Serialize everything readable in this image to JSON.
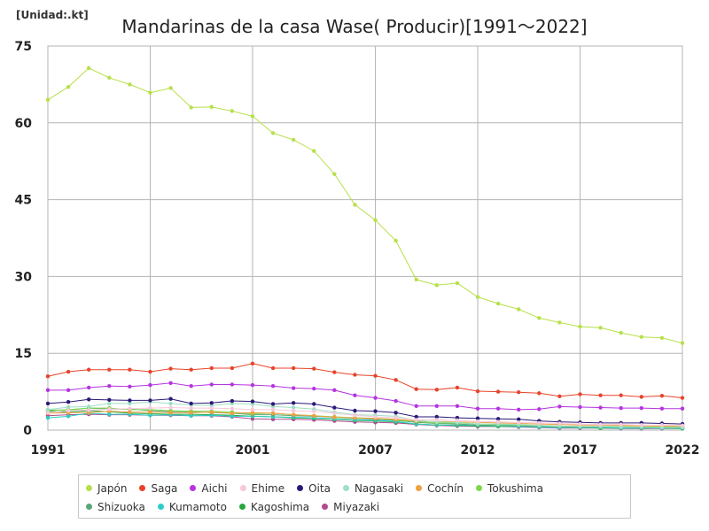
{
  "header": {
    "unit": "[Unidad:.kt]",
    "title": "Mandarinas de la casa Wase( Producir)[1991～2022]"
  },
  "chart_data": {
    "type": "line",
    "title": "Mandarinas de la casa Wase( Producir)[1991～2022]",
    "unit": "[Unidad:.kt]",
    "xlabel": "",
    "ylabel": "",
    "ylim": [
      0,
      75
    ],
    "xlim": [
      1991,
      2022
    ],
    "yticks": [
      0,
      15,
      30,
      45,
      60,
      75
    ],
    "xticks": [
      1991,
      1996,
      2001,
      2007,
      2012,
      2017,
      2022
    ],
    "grid": true,
    "legend_position": "bottom",
    "x": [
      1991,
      1992,
      1993,
      1994,
      1995,
      1996,
      1997,
      1998,
      1999,
      2000,
      2001,
      2002,
      2003,
      2004,
      2005,
      2006,
      2007,
      2008,
      2009,
      2010,
      2011,
      2012,
      2013,
      2014,
      2015,
      2016,
      2017,
      2018,
      2019,
      2020,
      2021,
      2022
    ],
    "series": [
      {
        "name": "Japón",
        "color": "#b6e04a",
        "values": [
          64.5,
          67,
          70.7,
          68.8,
          67.5,
          65.9,
          66.8,
          63,
          63.1,
          62.3,
          61.3,
          58,
          56.7,
          54.5,
          50,
          44,
          41,
          37,
          29.4,
          28.3,
          28.7,
          26,
          24.7,
          23.6,
          21.9,
          21,
          20.2,
          20,
          19,
          18.2,
          18,
          17
        ]
      },
      {
        "name": "Saga",
        "color": "#e8432a",
        "values": [
          10.5,
          11.4,
          11.8,
          11.8,
          11.8,
          11.4,
          12,
          11.8,
          12.1,
          12.1,
          13,
          12.1,
          12.1,
          12,
          11.3,
          10.8,
          10.6,
          9.8,
          8,
          7.9,
          8.3,
          7.6,
          7.5,
          7.4,
          7.2,
          6.6,
          7,
          6.8,
          6.8,
          6.5,
          6.7,
          6.3
        ]
      },
      {
        "name": "Aichi",
        "color": "#b534e0",
        "values": [
          7.8,
          7.8,
          8.3,
          8.6,
          8.5,
          8.8,
          9.2,
          8.6,
          8.9,
          8.9,
          8.8,
          8.6,
          8.2,
          8.1,
          7.8,
          6.8,
          6.3,
          5.7,
          4.7,
          4.7,
          4.7,
          4.2,
          4.2,
          4,
          4.1,
          4.6,
          4.5,
          4.4,
          4.3,
          4.3,
          4.2,
          4.2
        ]
      },
      {
        "name": "Ehime",
        "color": "#f6c8dc",
        "values": [
          3.4,
          3.8,
          3.9,
          4.1,
          4.2,
          4.3,
          4.4,
          4.3,
          4.3,
          4.2,
          4,
          4,
          3.8,
          3.7,
          3.3,
          2.9,
          2.6,
          2.4,
          2,
          2,
          1.9,
          1.7,
          1.6,
          1.5,
          1.4,
          1.3,
          1.2,
          1.1,
          1.1,
          1,
          1,
          0.9
        ]
      },
      {
        "name": "Oita",
        "color": "#2a1a78",
        "values": [
          5.2,
          5.5,
          6,
          5.9,
          5.8,
          5.8,
          6.1,
          5.2,
          5.3,
          5.7,
          5.6,
          5.1,
          5.3,
          5.1,
          4.4,
          3.8,
          3.7,
          3.4,
          2.6,
          2.6,
          2.4,
          2.3,
          2.2,
          2.1,
          1.8,
          1.6,
          1.5,
          1.4,
          1.4,
          1.4,
          1.3,
          1.2
        ]
      },
      {
        "name": "Nagasaki",
        "color": "#9de0c4",
        "values": [
          4,
          4.5,
          4.6,
          5.2,
          5.2,
          5.5,
          5.2,
          4.9,
          4.8,
          5.2,
          5.1,
          4.6,
          4.4,
          4.1,
          3.5,
          3,
          2.9,
          2.7,
          1.9,
          1.6,
          1.5,
          1.2,
          1.2,
          1.1,
          0.9,
          0.8,
          0.7,
          0.7,
          0.6,
          0.6,
          0.5,
          0.5
        ]
      },
      {
        "name": "Cochín",
        "color": "#f0a040",
        "values": [
          3.3,
          3.4,
          3.4,
          3.7,
          3.5,
          3.5,
          3.4,
          3.4,
          3.5,
          3.3,
          3.4,
          3.3,
          3,
          2.8,
          2.5,
          2.4,
          2.3,
          2.1,
          1.8,
          1.7,
          1.6,
          1.5,
          1.4,
          1.3,
          1.2,
          1.1,
          1,
          1,
          0.9,
          0.8,
          0.8,
          0.8
        ]
      },
      {
        "name": "Tokushima",
        "color": "#7ed84a",
        "values": [
          3.8,
          4,
          4.3,
          4.3,
          4,
          4,
          3.8,
          3.7,
          3.7,
          3.5,
          3.2,
          3.3,
          3,
          2.8,
          2.6,
          2.4,
          2.3,
          2,
          1.7,
          1.4,
          1.4,
          1.2,
          1.1,
          1,
          0.9,
          0.8,
          0.7,
          0.7,
          0.7,
          0.6,
          0.6,
          0.6
        ]
      },
      {
        "name": "Shizuoka",
        "color": "#58a878",
        "values": [
          3.9,
          3.9,
          4.3,
          4.1,
          4.1,
          3.8,
          3.6,
          3.6,
          3.4,
          3.3,
          3,
          3,
          2.8,
          2.7,
          2.5,
          2.3,
          2.1,
          1.9,
          1.5,
          1.3,
          1.2,
          1,
          0.9,
          0.9,
          0.8,
          0.7,
          0.6,
          0.6,
          0.6,
          0.5,
          0.5,
          0.5
        ]
      },
      {
        "name": "Kumamoto",
        "color": "#2ccdc6",
        "values": [
          2.4,
          2.7,
          3.3,
          3.1,
          3.1,
          2.9,
          3,
          2.8,
          2.9,
          2.7,
          2.7,
          2.6,
          2.5,
          2.4,
          2.2,
          2,
          1.9,
          1.7,
          1.2,
          1,
          1,
          0.9,
          0.8,
          0.7,
          0.6,
          0.5,
          0.5,
          0.5,
          0.4,
          0.4,
          0.4,
          0.4
        ]
      },
      {
        "name": "Kagoshima",
        "color": "#24a83a",
        "values": [
          3.7,
          3.5,
          3.8,
          3.6,
          3.3,
          3.2,
          3.1,
          3.1,
          3,
          2.9,
          2.7,
          2.6,
          2.4,
          2.3,
          2.1,
          1.9,
          1.8,
          1.6,
          1.2,
          1,
          0.9,
          0.8,
          0.7,
          0.7,
          0.6,
          0.5,
          0.5,
          0.4,
          0.4,
          0.4,
          0.4,
          0.3
        ]
      },
      {
        "name": "Miyazaki",
        "color": "#b24a8e",
        "values": [
          2.8,
          3,
          3.1,
          3,
          3,
          2.9,
          2.9,
          2.8,
          2.8,
          2.6,
          2.2,
          2.1,
          2.1,
          2,
          1.8,
          1.6,
          1.5,
          1.4,
          1.1,
          0.9,
          0.8,
          0.7,
          0.7,
          0.6,
          0.5,
          0.4,
          0.4,
          0.4,
          0.3,
          0.3,
          0.3,
          0.3
        ]
      }
    ]
  }
}
